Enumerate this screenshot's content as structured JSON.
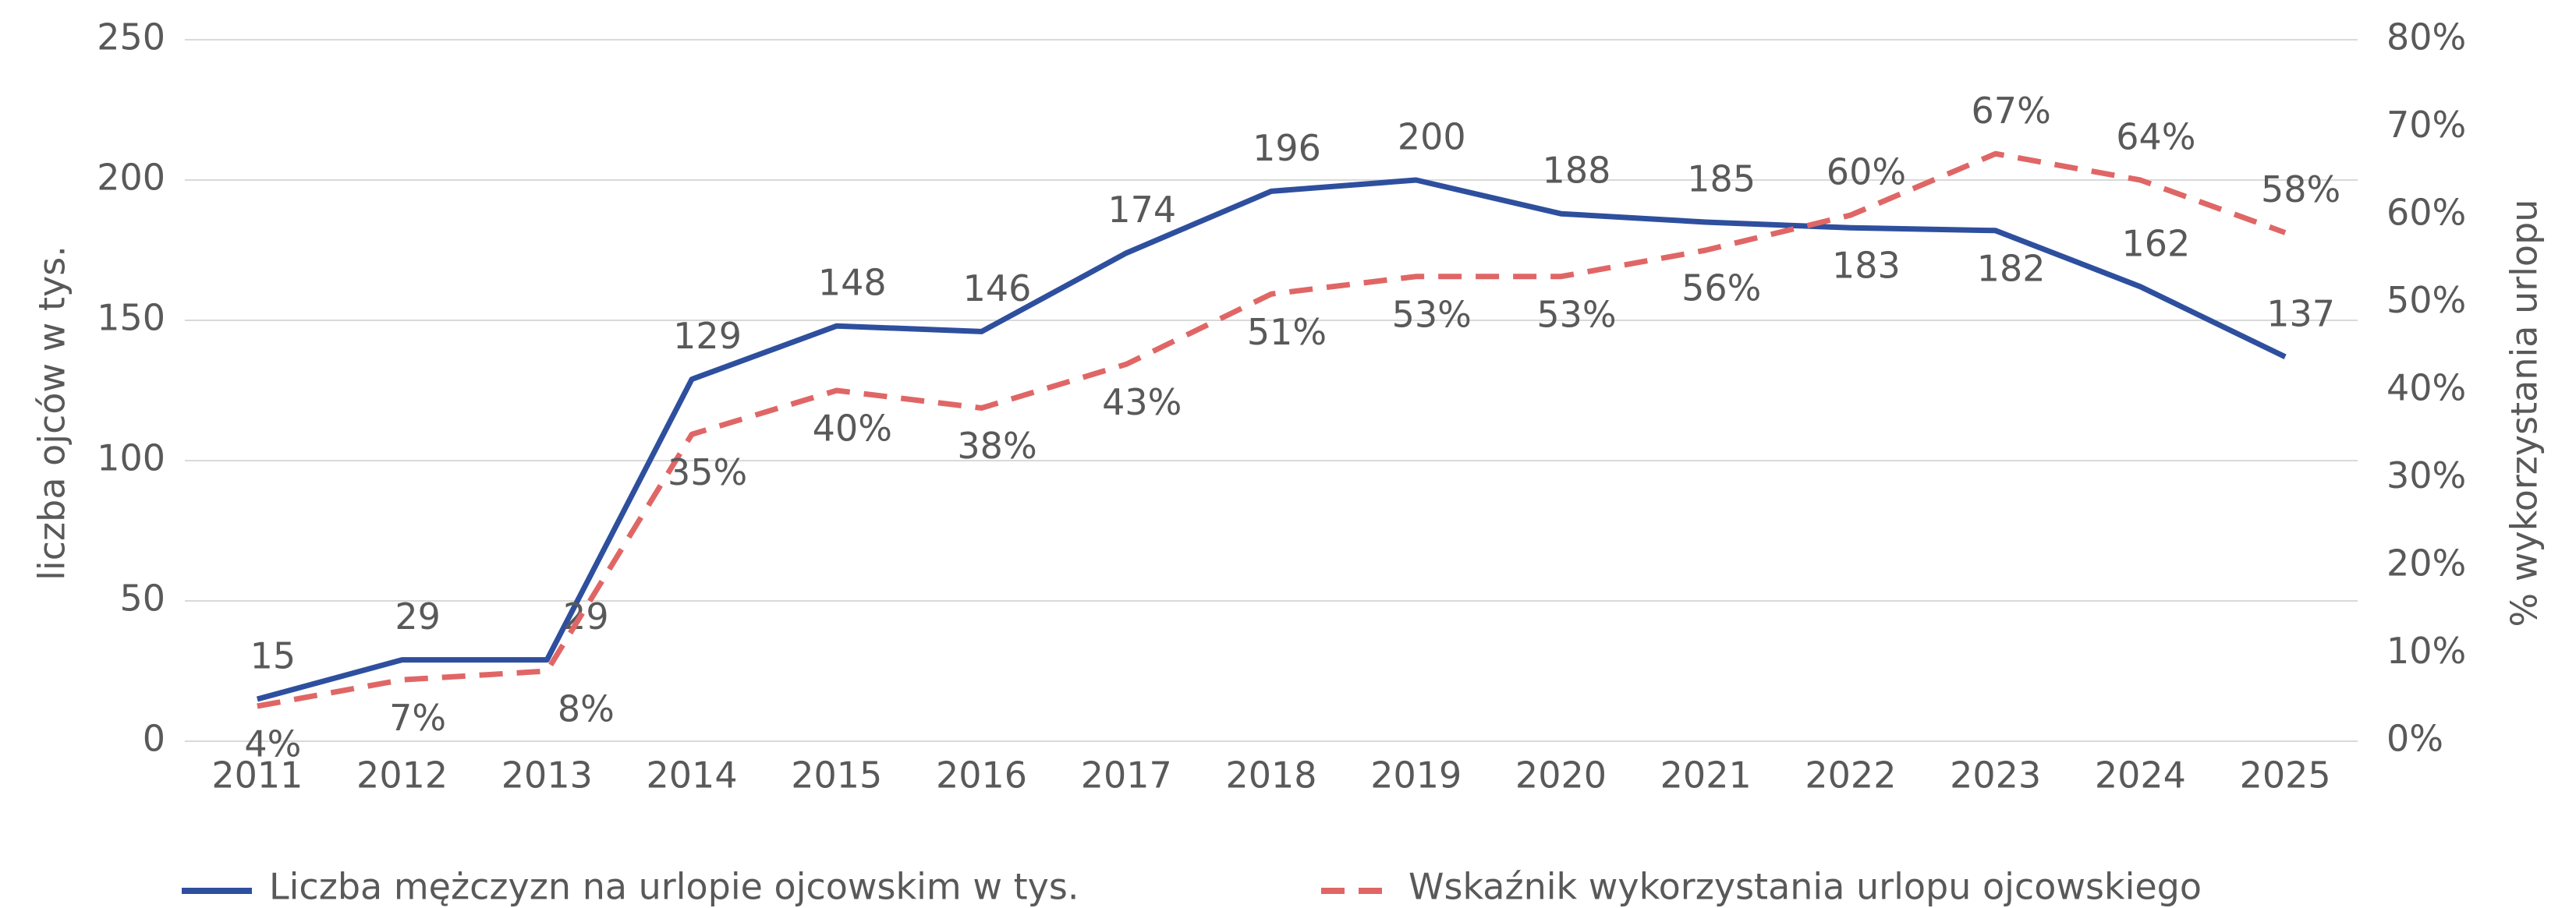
{
  "chart_data": {
    "type": "line",
    "x": [
      2011,
      2012,
      2013,
      2014,
      2015,
      2016,
      2017,
      2018,
      2019,
      2020,
      2021,
      2022,
      2023,
      2024,
      2025
    ],
    "ylabel": "liczba ojców w  tys.",
    "y2label": "% wykorzystania urlopu",
    "ylim": [
      0,
      250
    ],
    "yticks": [
      0,
      50,
      100,
      150,
      200,
      250
    ],
    "y2lim": [
      0,
      80
    ],
    "y2ticks": [
      {
        "value": 0,
        "label": "0%"
      },
      {
        "value": 10,
        "label": "10%"
      },
      {
        "value": 20,
        "label": "20%"
      },
      {
        "value": 30,
        "label": "30%"
      },
      {
        "value": 40,
        "label": "40%"
      },
      {
        "value": 50,
        "label": "50%"
      },
      {
        "value": 60,
        "label": "60%"
      },
      {
        "value": 70,
        "label": "70%"
      },
      {
        "value": 80,
        "label": "80%"
      }
    ],
    "grid": true,
    "legend": "bottom",
    "series": [
      {
        "name": "Liczba mężczyzn na urlopie ojcowskim w tys.",
        "color": "#2e4f9e",
        "dash": false,
        "values": [
          15,
          29,
          29,
          129,
          148,
          146,
          174,
          196,
          200,
          188,
          185,
          183,
          182,
          162,
          137
        ]
      },
      {
        "name": "Wskaźnik wykorzystania urlopu ojcowskiego",
        "color": "#e06666",
        "dash": true,
        "axis": "y2",
        "values": [
          4,
          7,
          8,
          35,
          40,
          38,
          43,
          51,
          53,
          53,
          56,
          60,
          67,
          64,
          58
        ],
        "value_labels": [
          "4%",
          "7%",
          "8%",
          "35%",
          "40%",
          "38%",
          "43%",
          "51%",
          "53%",
          "53%",
          "56%",
          "60%",
          "67%",
          "64%",
          "58%"
        ]
      }
    ]
  }
}
